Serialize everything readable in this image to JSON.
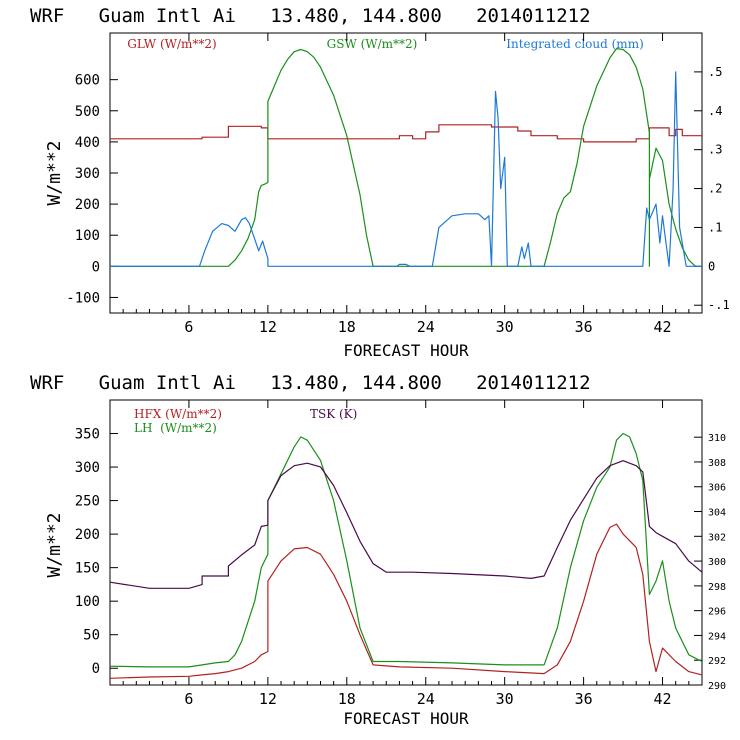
{
  "chart_data": [
    {
      "type": "line",
      "title": "WRF   Guam Intl Ai   13.480, 144.800   2014011212",
      "xlabel": "FORECAST HOUR",
      "ylabel": "W/m**2",
      "xlim": [
        0,
        45
      ],
      "ylim": [
        -150,
        750
      ],
      "x_ticks": [
        "6",
        "12",
        "18",
        "24",
        "30",
        "36",
        "42"
      ],
      "y_ticks": [
        "-100",
        "0",
        "100",
        "200",
        "300",
        "400",
        "500",
        "600"
      ],
      "y2lim": [
        -0.12,
        0.6
      ],
      "y2_ticks": [
        "-.1",
        "0",
        ".1",
        ".2",
        ".3",
        ".4",
        ".5"
      ],
      "legend": [
        "GLW (W/m**2)",
        "GSW (W/m**2)",
        "Integrated cloud (mm)"
      ],
      "colors": {
        "GLW": "#b22222",
        "GSW": "#1a8f1a",
        "CLOUD": "#1e78d8"
      },
      "series": [
        {
          "name": "GLW",
          "axis": "left",
          "points": [
            [
              0,
              410
            ],
            [
              7,
              410
            ],
            [
              7,
              415
            ],
            [
              9,
              415
            ],
            [
              9,
              450
            ],
            [
              11.5,
              450
            ],
            [
              11.5,
              445
            ],
            [
              12,
              445
            ],
            [
              12,
              410
            ],
            [
              22,
              410
            ],
            [
              22,
              420
            ],
            [
              23,
              420
            ],
            [
              23,
              410
            ],
            [
              24,
              410
            ],
            [
              24,
              432
            ],
            [
              25,
              432
            ],
            [
              25,
              455
            ],
            [
              29,
              455
            ],
            [
              29,
              448
            ],
            [
              31,
              448
            ],
            [
              31,
              435
            ],
            [
              32,
              435
            ],
            [
              32,
              420
            ],
            [
              34,
              420
            ],
            [
              34,
              410
            ],
            [
              36,
              410
            ],
            [
              36,
              400
            ],
            [
              40,
              400
            ],
            [
              40,
              410
            ],
            [
              41,
              410
            ],
            [
              41,
              445
            ],
            [
              42.5,
              445
            ],
            [
              42.5,
              420
            ],
            [
              43,
              420
            ],
            [
              43,
              440
            ],
            [
              43.5,
              440
            ],
            [
              43.5,
              420
            ],
            [
              45,
              420
            ]
          ]
        },
        {
          "name": "GSW",
          "axis": "left",
          "points": [
            [
              0,
              0
            ],
            [
              9,
              0
            ],
            [
              9.5,
              20
            ],
            [
              10,
              50
            ],
            [
              10.5,
              90
            ],
            [
              11,
              150
            ],
            [
              11.3,
              240
            ],
            [
              11.5,
              260
            ],
            [
              11.8,
              265
            ],
            [
              12,
              270
            ],
            [
              12,
              530
            ],
            [
              12.5,
              580
            ],
            [
              13,
              630
            ],
            [
              13.5,
              665
            ],
            [
              14,
              690
            ],
            [
              14.5,
              697
            ],
            [
              15,
              690
            ],
            [
              15.5,
              672
            ],
            [
              16,
              640
            ],
            [
              17,
              550
            ],
            [
              18,
              420
            ],
            [
              19,
              230
            ],
            [
              19.5,
              100
            ],
            [
              20,
              0
            ],
            [
              33,
              0
            ],
            [
              33.5,
              80
            ],
            [
              34,
              170
            ],
            [
              34.5,
              220
            ],
            [
              35,
              240
            ],
            [
              35.5,
              330
            ],
            [
              36,
              450
            ],
            [
              37,
              580
            ],
            [
              38,
              670
            ],
            [
              38.5,
              700
            ],
            [
              39,
              697
            ],
            [
              39.5,
              680
            ],
            [
              40,
              640
            ],
            [
              40.5,
              570
            ],
            [
              41,
              430
            ],
            [
              41,
              0
            ],
            [
              41,
              280
            ],
            [
              41.5,
              380
            ],
            [
              42,
              340
            ],
            [
              42.5,
              200
            ],
            [
              43,
              120
            ],
            [
              43.5,
              60
            ],
            [
              44,
              20
            ],
            [
              44.5,
              0
            ],
            [
              45,
              0
            ]
          ]
        },
        {
          "name": "CLOUD",
          "axis": "right",
          "points": [
            [
              0,
              0
            ],
            [
              6.8,
              0
            ],
            [
              7.2,
              0.04
            ],
            [
              7.8,
              0.09
            ],
            [
              8.5,
              0.11
            ],
            [
              9,
              0.105
            ],
            [
              9.5,
              0.09
            ],
            [
              10,
              0.12
            ],
            [
              10.3,
              0.125
            ],
            [
              10.6,
              0.11
            ],
            [
              11,
              0.07
            ],
            [
              11.3,
              0.04
            ],
            [
              11.6,
              0.065
            ],
            [
              12,
              0.02
            ],
            [
              12,
              0
            ],
            [
              21.8,
              0
            ],
            [
              22,
              0.005
            ],
            [
              22.5,
              0.005
            ],
            [
              22.8,
              0
            ],
            [
              24.5,
              0
            ],
            [
              25,
              0.1
            ],
            [
              26,
              0.13
            ],
            [
              27,
              0.135
            ],
            [
              28,
              0.135
            ],
            [
              28.5,
              0.12
            ],
            [
              28.8,
              0.13
            ],
            [
              29,
              0
            ],
            [
              29.3,
              0.45
            ],
            [
              29.5,
              0.38
            ],
            [
              29.7,
              0.2
            ],
            [
              30,
              0.28
            ],
            [
              30.2,
              0
            ],
            [
              31,
              0
            ],
            [
              31.3,
              0.05
            ],
            [
              31.5,
              0.02
            ],
            [
              31.8,
              0.06
            ],
            [
              32,
              0
            ],
            [
              40.5,
              0
            ],
            [
              40.8,
              0.15
            ],
            [
              41,
              0.12
            ],
            [
              41.5,
              0.16
            ],
            [
              41.8,
              0.06
            ],
            [
              42,
              0.13
            ],
            [
              42.3,
              0.05
            ],
            [
              42.5,
              0
            ],
            [
              42.8,
              0.2
            ],
            [
              43,
              0.5
            ],
            [
              43.3,
              0.1
            ],
            [
              43.8,
              0
            ],
            [
              45,
              0
            ]
          ]
        }
      ]
    },
    {
      "type": "line",
      "title": "WRF   Guam Intl Ai   13.480, 144.800   2014011212",
      "xlabel": "FORECAST HOUR",
      "ylabel": "W/m**2",
      "xlim": [
        0,
        45
      ],
      "ylim": [
        -25,
        400
      ],
      "x_ticks": [
        "6",
        "12",
        "18",
        "24",
        "30",
        "36",
        "42"
      ],
      "y_ticks": [
        "0",
        "50",
        "100",
        "150",
        "200",
        "250",
        "300",
        "350"
      ],
      "y2lim": [
        290,
        313
      ],
      "y2_ticks": [
        "290",
        "292",
        "294",
        "296",
        "298",
        "300",
        "302",
        "304",
        "306",
        "308",
        "310"
      ],
      "legend": [
        "HFX (W/m**2)",
        "LH  (W/m**2)",
        "TSK (K)"
      ],
      "colors": {
        "HFX": "#b22222",
        "LH": "#1a8f1a",
        "TSK": "#4a0a4a"
      },
      "series": [
        {
          "name": "HFX",
          "axis": "left",
          "points": [
            [
              0,
              -15
            ],
            [
              3,
              -13
            ],
            [
              6,
              -12
            ],
            [
              7,
              -10
            ],
            [
              8,
              -8
            ],
            [
              9,
              -5
            ],
            [
              10,
              0
            ],
            [
              11,
              10
            ],
            [
              11.5,
              20
            ],
            [
              12,
              25
            ],
            [
              12,
              130
            ],
            [
              13,
              160
            ],
            [
              14,
              178
            ],
            [
              15,
              180
            ],
            [
              16,
              170
            ],
            [
              17,
              140
            ],
            [
              18,
              100
            ],
            [
              19,
              50
            ],
            [
              20,
              5
            ],
            [
              22,
              2
            ],
            [
              26,
              0
            ],
            [
              30,
              -5
            ],
            [
              33,
              -8
            ],
            [
              34,
              5
            ],
            [
              35,
              40
            ],
            [
              36,
              100
            ],
            [
              37,
              170
            ],
            [
              38,
              210
            ],
            [
              38.5,
              215
            ],
            [
              39,
              200
            ],
            [
              40,
              180
            ],
            [
              40.5,
              140
            ],
            [
              41,
              40
            ],
            [
              41.5,
              -5
            ],
            [
              42,
              30
            ],
            [
              43,
              10
            ],
            [
              44,
              -5
            ],
            [
              45,
              -10
            ]
          ]
        },
        {
          "name": "LH",
          "axis": "left",
          "points": [
            [
              0,
              3
            ],
            [
              3,
              2
            ],
            [
              6,
              2
            ],
            [
              7,
              5
            ],
            [
              8,
              8
            ],
            [
              9,
              10
            ],
            [
              9.5,
              20
            ],
            [
              10,
              40
            ],
            [
              11,
              100
            ],
            [
              11.5,
              150
            ],
            [
              12,
              170
            ],
            [
              12,
              250
            ],
            [
              13,
              290
            ],
            [
              14,
              330
            ],
            [
              14.5,
              345
            ],
            [
              15,
              340
            ],
            [
              16,
              310
            ],
            [
              17,
              250
            ],
            [
              18,
              160
            ],
            [
              19,
              60
            ],
            [
              20,
              10
            ],
            [
              22,
              10
            ],
            [
              26,
              8
            ],
            [
              30,
              5
            ],
            [
              33,
              5
            ],
            [
              34,
              60
            ],
            [
              35,
              150
            ],
            [
              36,
              220
            ],
            [
              37,
              270
            ],
            [
              38,
              300
            ],
            [
              38.5,
              340
            ],
            [
              39,
              350
            ],
            [
              39.5,
              345
            ],
            [
              40,
              320
            ],
            [
              40.5,
              280
            ],
            [
              41,
              110
            ],
            [
              41.5,
              130
            ],
            [
              42,
              160
            ],
            [
              42.5,
              100
            ],
            [
              43,
              60
            ],
            [
              44,
              20
            ],
            [
              45,
              10
            ]
          ]
        },
        {
          "name": "TSK",
          "axis": "right",
          "points": [
            [
              0,
              298.3
            ],
            [
              3,
              297.8
            ],
            [
              6,
              297.8
            ],
            [
              7,
              298.1
            ],
            [
              7,
              298.8
            ],
            [
              9,
              298.8
            ],
            [
              9,
              299.6
            ],
            [
              10,
              300.5
            ],
            [
              11,
              301.3
            ],
            [
              11.5,
              302.8
            ],
            [
              12,
              302.9
            ],
            [
              12,
              304.9
            ],
            [
              13,
              306.9
            ],
            [
              14,
              307.7
            ],
            [
              15,
              307.9
            ],
            [
              16,
              307.6
            ],
            [
              17,
              306.1
            ],
            [
              18,
              303.9
            ],
            [
              19,
              301.6
            ],
            [
              20,
              299.8
            ],
            [
              21,
              299.1
            ],
            [
              22,
              299.1
            ],
            [
              23,
              299.1
            ],
            [
              26,
              299.0
            ],
            [
              30,
              298.8
            ],
            [
              32,
              298.6
            ],
            [
              33,
              298.8
            ],
            [
              34,
              301.1
            ],
            [
              35,
              303.3
            ],
            [
              36,
              305.0
            ],
            [
              37,
              306.7
            ],
            [
              38,
              307.7
            ],
            [
              39,
              308.1
            ],
            [
              40,
              307.7
            ],
            [
              40.5,
              307.2
            ],
            [
              41,
              302.8
            ],
            [
              41.5,
              302.3
            ],
            [
              42,
              302.0
            ],
            [
              43,
              301.4
            ],
            [
              44,
              300.0
            ],
            [
              45,
              299.1
            ]
          ]
        }
      ]
    }
  ]
}
